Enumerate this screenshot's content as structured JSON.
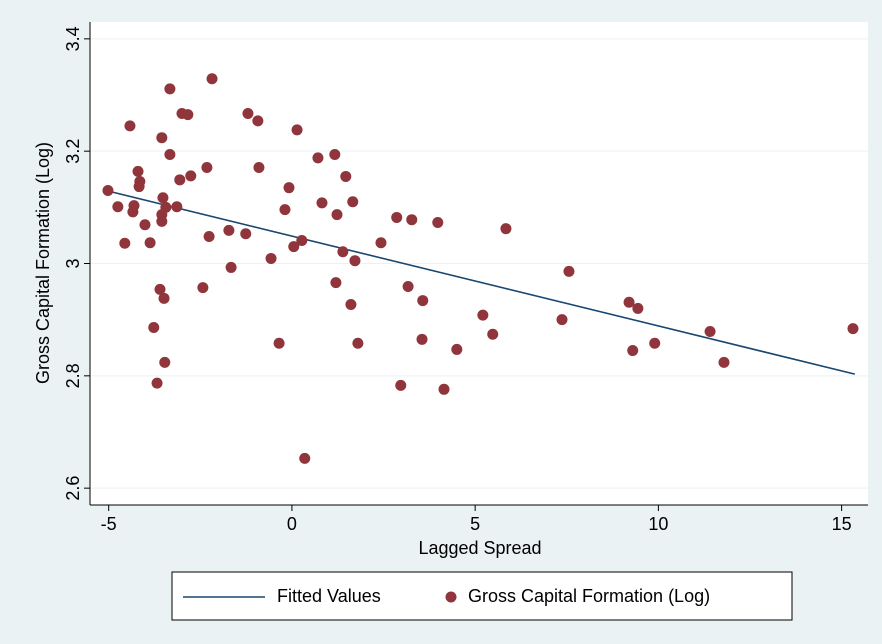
{
  "chart_data": {
    "type": "scatter",
    "x_label": "Lagged Spread",
    "y_label": "Gross Capital Formation (Log)",
    "xlim": [
      -5.51,
      15.72
    ],
    "xticks": [
      -5,
      0,
      5,
      10,
      15
    ],
    "ylim": [
      2.57,
      3.43
    ],
    "yticks": [
      2.6,
      2.8,
      3,
      3.2,
      3.4
    ],
    "grid": true,
    "legend": "bottom",
    "series": [
      {
        "name": "Fitted Values",
        "type": "line",
        "color": "#1a476f",
        "x": [
          -4.95,
          15.36
        ],
        "values": [
          3.128,
          2.803
        ]
      },
      {
        "name": "Gross Capital Formation (Log)",
        "type": "scatter",
        "color": "#90353b",
        "x": [
          -5.02,
          -4.75,
          -4.56,
          -4.42,
          -4.34,
          -4.31,
          -4.2,
          -4.17,
          -4.15,
          -4.01,
          -3.87,
          -3.77,
          -3.68,
          -3.6,
          -3.55,
          -3.55,
          -3.55,
          -3.52,
          -3.49,
          -3.47,
          -3.44,
          -3.33,
          -3.33,
          -3.14,
          -3.06,
          -3.0,
          -2.84,
          -2.76,
          -2.43,
          -2.32,
          -2.26,
          -2.18,
          -1.72,
          -1.66,
          -1.26,
          -1.2,
          -0.93,
          -0.9,
          -0.57,
          -0.35,
          -0.19,
          -0.08,
          0.05,
          0.14,
          0.27,
          0.35,
          0.71,
          0.82,
          1.17,
          1.2,
          1.23,
          1.39,
          1.47,
          1.61,
          1.66,
          1.72,
          1.8,
          2.43,
          2.86,
          2.97,
          3.17,
          3.27,
          3.55,
          3.57,
          3.98,
          4.15,
          4.5,
          5.21,
          5.48,
          5.84,
          7.37,
          7.56,
          9.2,
          9.3,
          9.44,
          9.9,
          11.41,
          11.79,
          15.31
        ],
        "values": [
          3.13,
          3.101,
          3.036,
          3.245,
          3.092,
          3.103,
          3.164,
          3.137,
          3.146,
          3.069,
          3.037,
          2.886,
          2.787,
          2.954,
          3.224,
          3.075,
          3.087,
          3.117,
          2.938,
          2.824,
          3.1,
          3.194,
          3.311,
          3.101,
          3.149,
          3.267,
          3.265,
          3.156,
          2.957,
          3.171,
          3.048,
          3.329,
          3.059,
          2.993,
          3.053,
          3.267,
          3.254,
          3.171,
          3.009,
          2.858,
          3.096,
          3.135,
          3.03,
          3.238,
          3.041,
          2.653,
          3.188,
          3.108,
          3.194,
          2.966,
          3.087,
          3.021,
          3.155,
          2.927,
          3.11,
          3.005,
          2.858,
          3.037,
          3.082,
          2.783,
          2.959,
          3.078,
          2.865,
          2.934,
          3.073,
          2.776,
          2.847,
          2.908,
          2.874,
          3.062,
          2.9,
          2.986,
          2.931,
          2.845,
          2.92,
          2.858,
          2.879,
          2.824,
          2.884
        ]
      }
    ]
  }
}
